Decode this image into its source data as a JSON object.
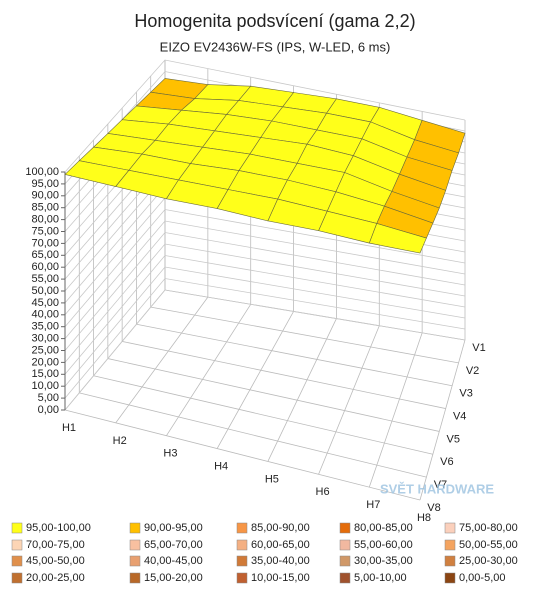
{
  "chart_data": {
    "type": "surface",
    "title": "Homogenita podsvícení (gama 2,2)",
    "subtitle": "EIZO EV2436W-FS (IPS, W-LED, 6 ms)",
    "watermark": "SVĚT HARDWARE",
    "x_categories": [
      "H1",
      "H2",
      "H3",
      "H4",
      "H5",
      "H6",
      "H7",
      "H8"
    ],
    "y_categories": [
      "V1",
      "V2",
      "V3",
      "V4",
      "V5",
      "V6",
      "V7",
      "V8"
    ],
    "values": [
      [
        92,
        93,
        96,
        97,
        98,
        98,
        96,
        94
      ],
      [
        93,
        94,
        97,
        98,
        99,
        99,
        95,
        93
      ],
      [
        94,
        96,
        98,
        99,
        99,
        99,
        95,
        93
      ],
      [
        95,
        97,
        98,
        99,
        100,
        99,
        95,
        92
      ],
      [
        96,
        97,
        98,
        99,
        99,
        99,
        95,
        92
      ],
      [
        97,
        98,
        98,
        99,
        99,
        98,
        96,
        93
      ],
      [
        98,
        98,
        98,
        98,
        98,
        97,
        96,
        94
      ],
      [
        99,
        98,
        97,
        97,
        96,
        96,
        95,
        95
      ]
    ],
    "zlim": [
      0,
      100
    ],
    "zticks": [
      {
        "value": 0,
        "label": "0,00"
      },
      {
        "value": 5,
        "label": "5,00"
      },
      {
        "value": 10,
        "label": "10,00"
      },
      {
        "value": 15,
        "label": "15,00"
      },
      {
        "value": 20,
        "label": "20,00"
      },
      {
        "value": 25,
        "label": "25,00"
      },
      {
        "value": 30,
        "label": "30,00"
      },
      {
        "value": 35,
        "label": "35,00"
      },
      {
        "value": 40,
        "label": "40,00"
      },
      {
        "value": 45,
        "label": "45,00"
      },
      {
        "value": 50,
        "label": "50,00"
      },
      {
        "value": 55,
        "label": "55,00"
      },
      {
        "value": 60,
        "label": "60,00"
      },
      {
        "value": 65,
        "label": "65,00"
      },
      {
        "value": 70,
        "label": "70,00"
      },
      {
        "value": 75,
        "label": "75,00"
      },
      {
        "value": 80,
        "label": "80,00"
      },
      {
        "value": 85,
        "label": "85,00"
      },
      {
        "value": 90,
        "label": "90,00"
      },
      {
        "value": 95,
        "label": "95,00"
      },
      {
        "value": 100,
        "label": "100,00"
      }
    ],
    "bands": [
      {
        "from": 95,
        "to": 100,
        "label": "95,00-100,00",
        "color": "#ffff1a"
      },
      {
        "from": 90,
        "to": 95,
        "label": "90,00-95,00",
        "color": "#ffc000"
      },
      {
        "from": 85,
        "to": 90,
        "label": "85,00-90,00",
        "color": "#f79646"
      },
      {
        "from": 80,
        "to": 85,
        "label": "80,00-85,00",
        "color": "#e46c0a"
      },
      {
        "from": 75,
        "to": 80,
        "label": "75,00-80,00",
        "color": "#fbd0bc"
      },
      {
        "from": 70,
        "to": 75,
        "label": "70,00-75,00",
        "color": "#fcd5b5"
      },
      {
        "from": 65,
        "to": 70,
        "label": "65,00-70,00",
        "color": "#f8c0a0"
      },
      {
        "from": 60,
        "to": 65,
        "label": "60,00-65,00",
        "color": "#f4b083"
      },
      {
        "from": 55,
        "to": 60,
        "label": "55,00-60,00",
        "color": "#f2b8a0"
      },
      {
        "from": 50,
        "to": 55,
        "label": "50,00-55,00",
        "color": "#f4a460"
      },
      {
        "from": 45,
        "to": 50,
        "label": "45,00-50,00",
        "color": "#e0904c"
      },
      {
        "from": 40,
        "to": 45,
        "label": "40,00-45,00",
        "color": "#e8a070"
      },
      {
        "from": 35,
        "to": 40,
        "label": "35,00-40,00",
        "color": "#d07a38"
      },
      {
        "from": 30,
        "to": 35,
        "label": "30,00-35,00",
        "color": "#d09868"
      },
      {
        "from": 25,
        "to": 30,
        "label": "25,00-30,00",
        "color": "#d08040"
      },
      {
        "from": 20,
        "to": 25,
        "label": "20,00-25,00",
        "color": "#c07030"
      },
      {
        "from": 15,
        "to": 20,
        "label": "15,00-20,00",
        "color": "#b86828"
      },
      {
        "from": 10,
        "to": 15,
        "label": "10,00-15,00",
        "color": "#c06030"
      },
      {
        "from": 5,
        "to": 10,
        "label": "5,00-10,00",
        "color": "#a0522d"
      },
      {
        "from": 0,
        "to": 5,
        "label": "0,00-5,00",
        "color": "#8b4513"
      }
    ]
  }
}
